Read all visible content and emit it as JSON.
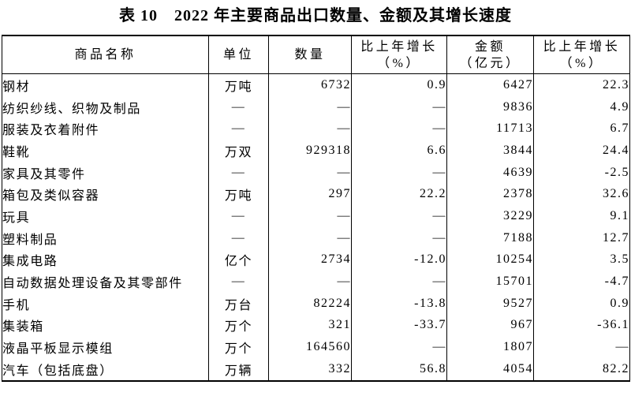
{
  "page": {
    "background_color": "#ffffff",
    "text_color": "#000000",
    "border_color": "#000000"
  },
  "table": {
    "title": "表 10　2022 年主要商品出口数量、金额及其增长速度",
    "columns": [
      {
        "label": "商品名称"
      },
      {
        "label": "单位"
      },
      {
        "label": "数量"
      },
      {
        "label": "比上年增长",
        "label2": "（%）"
      },
      {
        "label": "金额",
        "label2": "（亿元）"
      },
      {
        "label": "比上年增长",
        "label2": "（%）"
      }
    ],
    "rows": [
      {
        "name": "钢材",
        "unit": "万吨",
        "quantity": "6732",
        "quantity_growth": "0.9",
        "amount": "6427",
        "amount_growth": "22.3"
      },
      {
        "name": "纺织纱线、织物及制品",
        "unit": "—",
        "quantity": "—",
        "quantity_growth": "—",
        "amount": "9836",
        "amount_growth": "4.9"
      },
      {
        "name": "服装及衣着附件",
        "unit": "—",
        "quantity": "—",
        "quantity_growth": "—",
        "amount": "11713",
        "amount_growth": "6.7"
      },
      {
        "name": "鞋靴",
        "unit": "万双",
        "quantity": "929318",
        "quantity_growth": "6.6",
        "amount": "3844",
        "amount_growth": "24.4"
      },
      {
        "name": "家具及其零件",
        "unit": "—",
        "quantity": "—",
        "quantity_growth": "—",
        "amount": "4639",
        "amount_growth": "-2.5"
      },
      {
        "name": "箱包及类似容器",
        "unit": "万吨",
        "quantity": "297",
        "quantity_growth": "22.2",
        "amount": "2378",
        "amount_growth": "32.6"
      },
      {
        "name": "玩具",
        "unit": "—",
        "quantity": "—",
        "quantity_growth": "—",
        "amount": "3229",
        "amount_growth": "9.1"
      },
      {
        "name": "塑料制品",
        "unit": "—",
        "quantity": "—",
        "quantity_growth": "—",
        "amount": "7188",
        "amount_growth": "12.7"
      },
      {
        "name": "集成电路",
        "unit": "亿个",
        "quantity": "2734",
        "quantity_growth": "-12.0",
        "amount": "10254",
        "amount_growth": "3.5"
      },
      {
        "name": "自动数据处理设备及其零部件",
        "unit": "—",
        "quantity": "—",
        "quantity_growth": "—",
        "amount": "15701",
        "amount_growth": "-4.7"
      },
      {
        "name": "手机",
        "unit": "万台",
        "quantity": "82224",
        "quantity_growth": "-13.8",
        "amount": "9527",
        "amount_growth": "0.9"
      },
      {
        "name": "集装箱",
        "unit": "万个",
        "quantity": "321",
        "quantity_growth": "-33.7",
        "amount": "967",
        "amount_growth": "-36.1"
      },
      {
        "name": "液晶平板显示模组",
        "unit": "万个",
        "quantity": "164560",
        "quantity_growth": "—",
        "amount": "1807",
        "amount_growth": "—"
      },
      {
        "name": "汽车（包括底盘）",
        "unit": "万辆",
        "quantity": "332",
        "quantity_growth": "56.8",
        "amount": "4054",
        "amount_growth": "82.2"
      }
    ]
  }
}
